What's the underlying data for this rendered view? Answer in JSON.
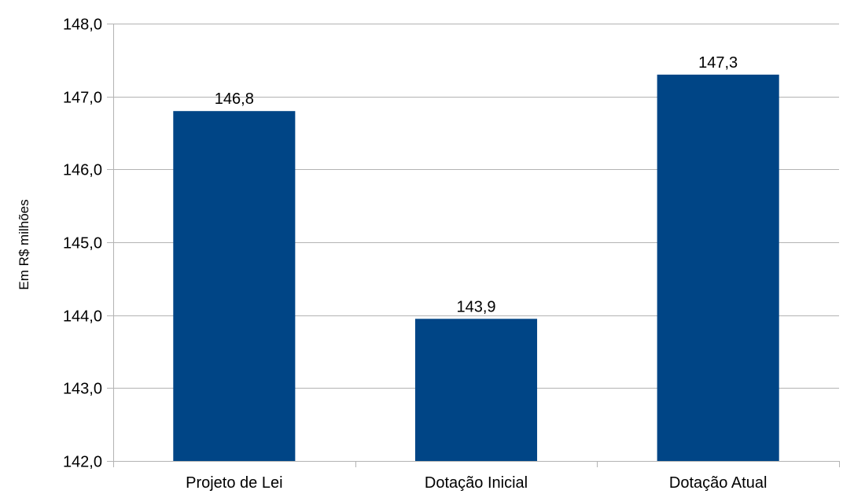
{
  "chart_data": {
    "type": "bar",
    "title": "",
    "xlabel": "",
    "ylabel": "Em R$ milhões",
    "categories": [
      "Projeto de Lei",
      "Dotação Inicial",
      "Dotação Atual"
    ],
    "values": [
      146.8,
      143.95,
      147.3
    ],
    "data_labels": [
      "146,8",
      "143,9",
      "147,3"
    ],
    "yticks": [
      142.0,
      143.0,
      144.0,
      145.0,
      146.0,
      147.0,
      148.0
    ],
    "ytick_labels": [
      "142,0",
      "143,0",
      "144,0",
      "145,0",
      "146,0",
      "147,0",
      "148,0"
    ],
    "ylim": [
      142.0,
      148.0
    ],
    "grid": true,
    "legend": "none",
    "bar_color": "#004586",
    "grid_color": "#b3b3b3"
  }
}
